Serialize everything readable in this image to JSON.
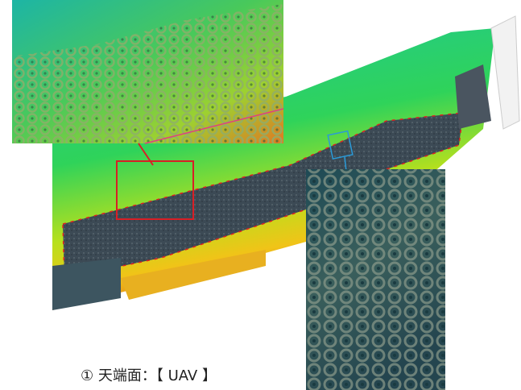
{
  "caption": "① 天端面：【 UAV 】"
}
